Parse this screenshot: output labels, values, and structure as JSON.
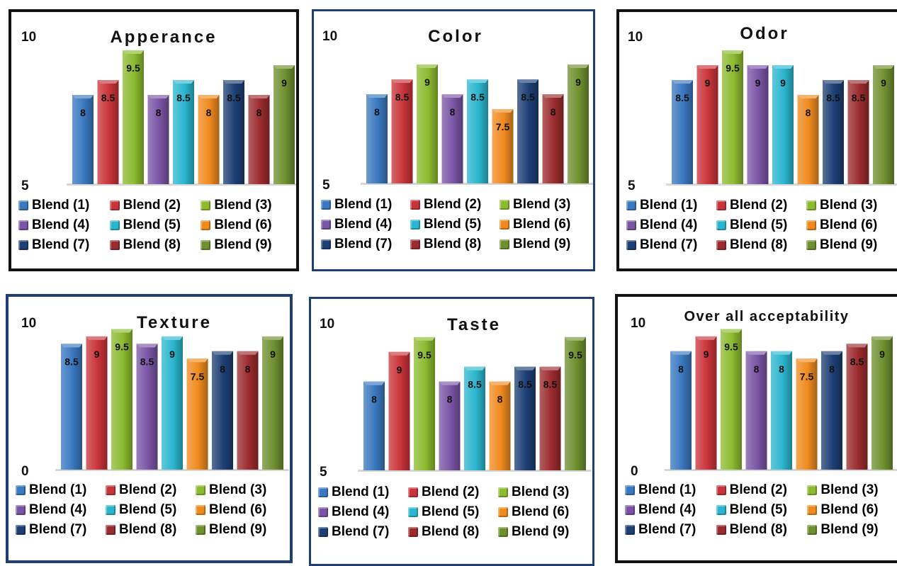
{
  "colors": [
    "#3a78c0",
    "#c9343a",
    "#8cbb2f",
    "#7a55a5",
    "#2bb6cf",
    "#ef8a1f",
    "#1d3f74",
    "#9b2b2e",
    "#6f902f"
  ],
  "legend": [
    "Blend (1)",
    "Blend (2)",
    "Blend (3)",
    "Blend (4)",
    "Blend (5)",
    "Blend (6)",
    "Blend (7)",
    "Blend (8)",
    "Blend (9)"
  ],
  "chart_data": [
    {
      "type": "bar",
      "title": "Apperance",
      "categories": [
        "Blend (1)",
        "Blend (2)",
        "Blend (3)",
        "Blend (4)",
        "Blend (5)",
        "Blend (6)",
        "Blend (7)",
        "Blend (8)",
        "Blend (9)"
      ],
      "values": [
        8,
        8.5,
        9.5,
        8,
        8.5,
        8,
        8.5,
        8,
        9
      ],
      "ylim": [
        5,
        10
      ],
      "yticks": [
        "5",
        "10"
      ],
      "legend_position": "bottom"
    },
    {
      "type": "bar",
      "title": "Color",
      "categories": [
        "Blend (1)",
        "Blend (2)",
        "Blend (3)",
        "Blend (4)",
        "Blend (5)",
        "Blend (6)",
        "Blend (7)",
        "Blend (8)",
        "Blend (9)"
      ],
      "values": [
        8,
        8.5,
        9,
        8,
        8.5,
        7.5,
        8.5,
        8,
        9
      ],
      "ylim": [
        5,
        10
      ],
      "yticks": [
        "5",
        "10"
      ],
      "legend_position": "bottom"
    },
    {
      "type": "bar",
      "title": "Odor",
      "categories": [
        "Blend (1)",
        "Blend (2)",
        "Blend (3)",
        "Blend (4)",
        "Blend (5)",
        "Blend (6)",
        "Blend (7)",
        "Blend (8)",
        "Blend (9)"
      ],
      "values": [
        8.5,
        9,
        9.5,
        9,
        9,
        8,
        8.5,
        8.5,
        9
      ],
      "ylim": [
        5,
        10
      ],
      "yticks": [
        "5",
        "10"
      ],
      "legend_position": "bottom"
    },
    {
      "type": "bar",
      "title": "Texture",
      "categories": [
        "Blend (1)",
        "Blend (2)",
        "Blend (3)",
        "Blend (4)",
        "Blend (5)",
        "Blend (6)",
        "Blend (7)",
        "Blend (8)",
        "Blend (9)"
      ],
      "values": [
        8.5,
        9,
        9.5,
        8.5,
        9,
        7.5,
        8,
        8,
        9
      ],
      "ylim": [
        0,
        10
      ],
      "yticks": [
        "0",
        "10"
      ],
      "legend_position": "bottom"
    },
    {
      "type": "bar",
      "title": "Taste",
      "categories": [
        "Blend (1)",
        "Blend (2)",
        "Blend (3)",
        "Blend (4)",
        "Blend (5)",
        "Blend (6)",
        "Blend (7)",
        "Blend (8)",
        "Blend (9)"
      ],
      "values": [
        8,
        9,
        9.5,
        8,
        8.5,
        8,
        8.5,
        8.5,
        9.5
      ],
      "ylim": [
        5,
        10
      ],
      "yticks": [
        "5",
        "10"
      ],
      "legend_position": "bottom"
    },
    {
      "type": "bar",
      "title": "Over all acceptability",
      "categories": [
        "Blend (1)",
        "Blend (2)",
        "Blend (3)",
        "Blend (4)",
        "Blend (5)",
        "Blend (6)",
        "Blend (7)",
        "Blend (8)",
        "Blend (9)"
      ],
      "values": [
        8,
        9,
        9.5,
        8,
        8,
        7.5,
        8,
        8.5,
        9
      ],
      "ylim": [
        0,
        10
      ],
      "yticks": [
        "0",
        "10"
      ],
      "legend_position": "bottom"
    }
  ]
}
